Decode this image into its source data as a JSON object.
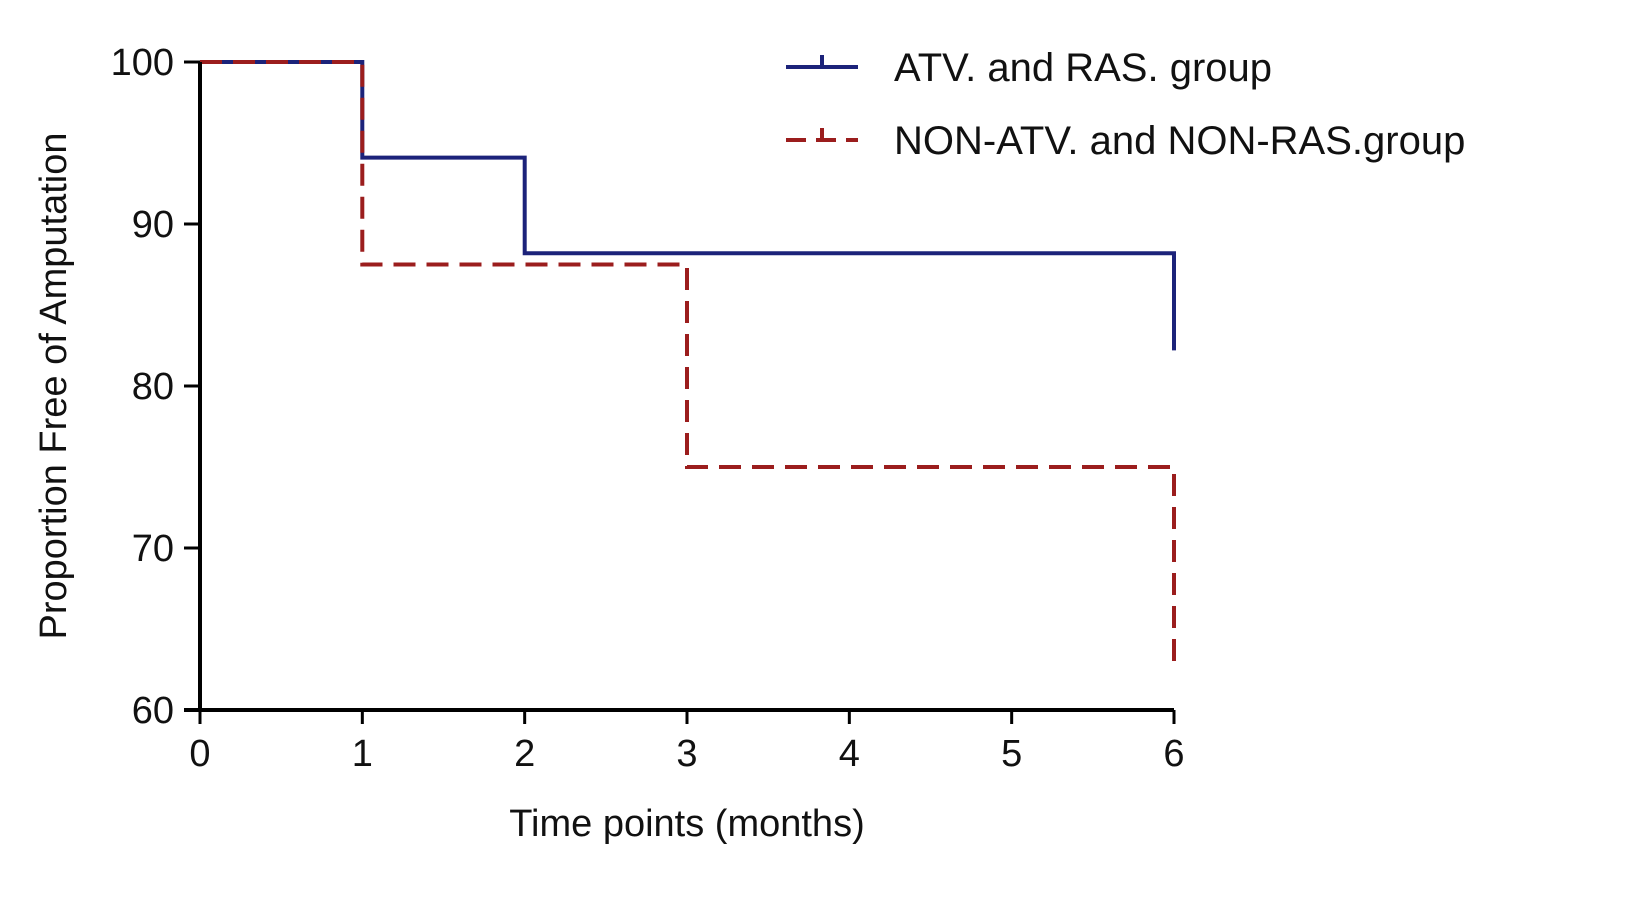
{
  "chart_data": {
    "type": "line",
    "subtype": "kaplan-meier-step",
    "title": "",
    "xlabel": "Time points (months)",
    "ylabel": "Proportion Free of Amputation",
    "xlim": [
      0,
      6
    ],
    "ylim": [
      60,
      100
    ],
    "x_ticks": [
      "0",
      "1",
      "2",
      "3",
      "4",
      "5",
      "6"
    ],
    "y_ticks": [
      "60",
      "70",
      "80",
      "90",
      "100"
    ],
    "grid": false,
    "legend_position": "top-right",
    "series": [
      {
        "name": "ATV. and RAS. group",
        "color": "#1c237a",
        "style": "solid",
        "points": [
          [
            0,
            100
          ],
          [
            1,
            100
          ],
          [
            1,
            94.1
          ],
          [
            2,
            94.1
          ],
          [
            2,
            88.2
          ],
          [
            6,
            88.2
          ],
          [
            6,
            82.2
          ]
        ]
      },
      {
        "name": "NON-ATV. and NON-RAS.group",
        "color": "#9b1d1d",
        "style": "dashed",
        "points": [
          [
            0,
            100
          ],
          [
            1,
            100
          ],
          [
            1,
            87.5
          ],
          [
            3,
            87.5
          ],
          [
            3,
            75
          ],
          [
            6,
            75
          ],
          [
            6,
            62.5
          ]
        ]
      }
    ]
  }
}
